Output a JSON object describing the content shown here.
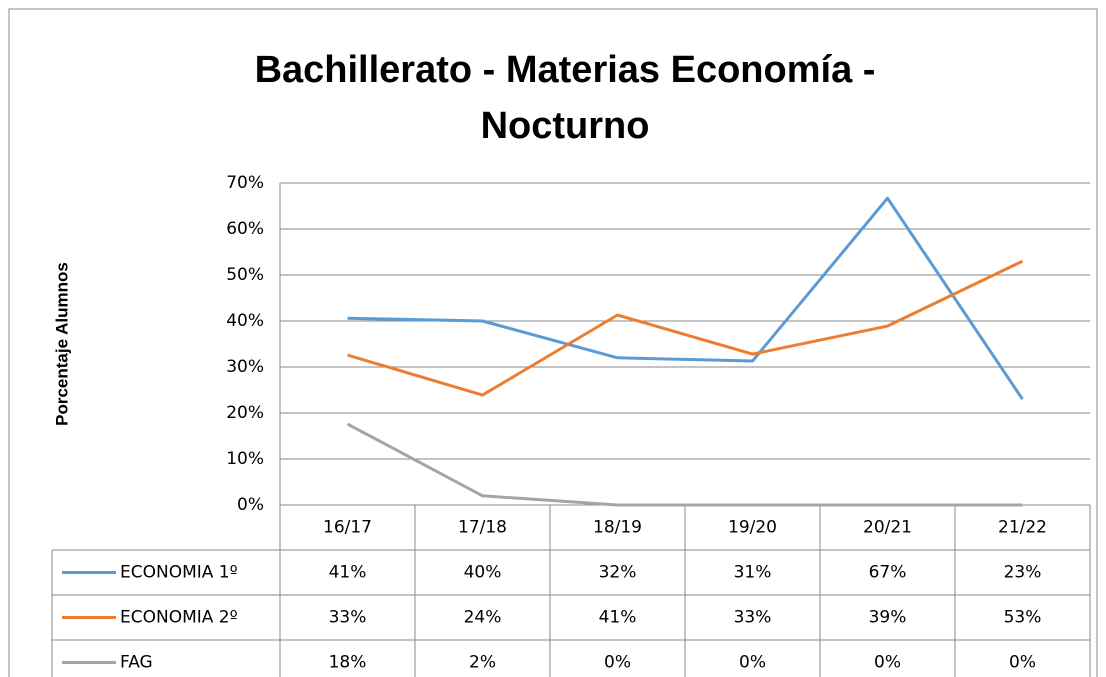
{
  "chart_data": {
    "type": "line",
    "title": "Bachillerato - Materias Economía -",
    "subtitle": "Nocturno",
    "y_label": "Porcentaje Alumnos",
    "categories": [
      "16/17",
      "17/18",
      "18/19",
      "19/20",
      "20/21",
      "21/22"
    ],
    "series": [
      {
        "name": "ECONOMIA 1º",
        "color": "#5b9bd5",
        "values": [
          40.6,
          40.0,
          32.0,
          31.3,
          66.7,
          23.0
        ],
        "value_labels": [
          "41%",
          "40%",
          "32%",
          "31%",
          "67%",
          "23%"
        ]
      },
      {
        "name": "ECONOMIA 2º",
        "color": "#ed7d31",
        "values": [
          32.6,
          23.9,
          41.3,
          32.8,
          38.9,
          53.0
        ],
        "value_labels": [
          "33%",
          "24%",
          "41%",
          "33%",
          "39%",
          "53%"
        ]
      },
      {
        "name": "FAG",
        "color": "#a5a5a5",
        "values": [
          17.6,
          2.0,
          0,
          0,
          0,
          0
        ],
        "value_labels": [
          "18%",
          "2%",
          "0%",
          "0%",
          "0%",
          "0%"
        ]
      }
    ],
    "ylim": [
      0,
      70
    ],
    "yticks": [
      {
        "value": 0,
        "label": "0%"
      },
      {
        "value": 10,
        "label": "10%"
      },
      {
        "value": 20,
        "label": "20%"
      },
      {
        "value": 30,
        "label": "30%"
      },
      {
        "value": 40,
        "label": "40%"
      },
      {
        "value": 50,
        "label": "50%"
      },
      {
        "value": 60,
        "label": "60%"
      },
      {
        "value": 70,
        "label": "70%"
      }
    ],
    "grid": true
  }
}
